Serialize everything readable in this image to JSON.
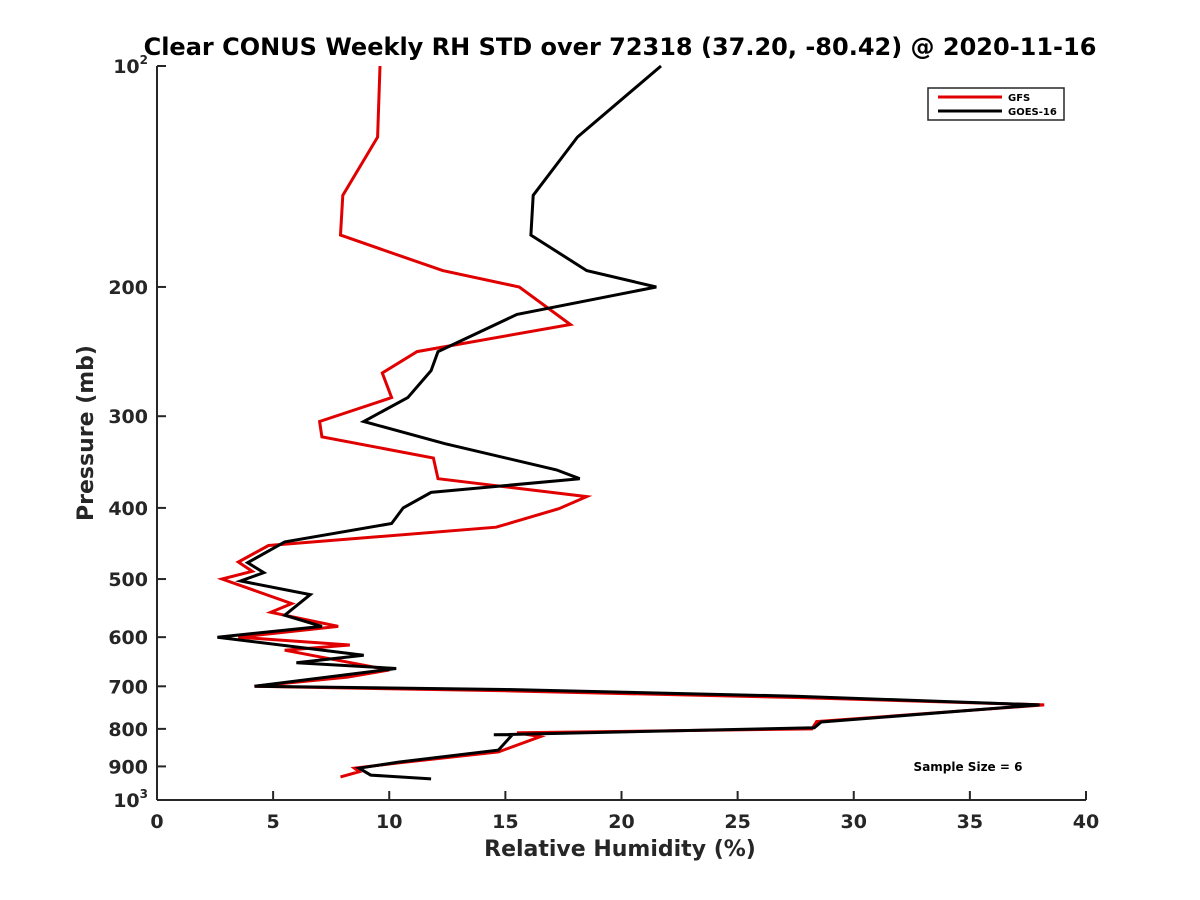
{
  "chart_data": {
    "type": "line",
    "title": "Clear CONUS Weekly RH STD over 72318 (37.20, -80.42) @ 2020-11-16",
    "xlabel": "Relative Humidity (%)",
    "ylabel": "Pressure (mb)",
    "xlim": [
      0,
      40
    ],
    "ylim": [
      100,
      1000
    ],
    "y_scale": "log",
    "y_reversed": true,
    "x_ticks": [
      "0",
      "5",
      "10",
      "15",
      "20",
      "25",
      "30",
      "35",
      "40"
    ],
    "x_tick_values": [
      0,
      5,
      10,
      15,
      20,
      25,
      30,
      35,
      40
    ],
    "y_ticks": [
      {
        "value": 100,
        "base": "10",
        "exp": "2"
      },
      {
        "value": 200,
        "label": "200"
      },
      {
        "value": 300,
        "label": "300"
      },
      {
        "value": 400,
        "label": "400"
      },
      {
        "value": 500,
        "label": "500"
      },
      {
        "value": 600,
        "label": "600"
      },
      {
        "value": 700,
        "label": "700"
      },
      {
        "value": 800,
        "label": "800"
      },
      {
        "value": 900,
        "label": "900"
      },
      {
        "value": 1000,
        "base": "10",
        "exp": "3"
      }
    ],
    "legend_position": "top-right",
    "grid": false,
    "annotation": "Sample Size = 6",
    "series": [
      {
        "name": "GFS",
        "color": "#e00000",
        "points": [
          [
            9.6,
            100
          ],
          [
            9.5,
            125
          ],
          [
            8.0,
            150
          ],
          [
            7.9,
            170
          ],
          [
            12.3,
            190
          ],
          [
            15.6,
            200
          ],
          [
            17.8,
            225
          ],
          [
            11.2,
            245
          ],
          [
            9.7,
            262
          ],
          [
            10.1,
            283
          ],
          [
            7.0,
            305
          ],
          [
            7.1,
            320
          ],
          [
            11.9,
            342
          ],
          [
            12.1,
            365
          ],
          [
            18.5,
            386
          ],
          [
            17.3,
            401
          ],
          [
            14.6,
            425
          ],
          [
            4.8,
            450
          ],
          [
            3.5,
            474
          ],
          [
            4.1,
            488
          ],
          [
            2.8,
            500
          ],
          [
            5.8,
            540
          ],
          [
            4.9,
            555
          ],
          [
            7.8,
            580
          ],
          [
            3.5,
            600
          ],
          [
            8.3,
            615
          ],
          [
            5.5,
            625
          ],
          [
            10.0,
            665
          ],
          [
            8.2,
            680
          ],
          [
            4.2,
            700
          ],
          [
            15.0,
            710
          ],
          [
            27.5,
            725
          ],
          [
            38.2,
            742
          ],
          [
            28.4,
            782
          ],
          [
            28.2,
            800
          ],
          [
            15.5,
            810
          ],
          [
            16.5,
            820
          ],
          [
            14.7,
            860
          ],
          [
            10.4,
            890
          ],
          [
            8.5,
            905
          ],
          [
            8.7,
            915
          ],
          [
            7.9,
            930
          ]
        ]
      },
      {
        "name": "GOES-16",
        "color": "#000000",
        "points": [
          [
            21.7,
            100
          ],
          [
            18.1,
            125
          ],
          [
            16.2,
            150
          ],
          [
            16.1,
            170
          ],
          [
            18.5,
            190
          ],
          [
            21.5,
            200
          ],
          [
            15.5,
            218
          ],
          [
            12.1,
            245
          ],
          [
            11.8,
            260
          ],
          [
            10.8,
            283
          ],
          [
            8.9,
            305
          ],
          [
            12.4,
            327
          ],
          [
            17.2,
            355
          ],
          [
            18.2,
            365
          ],
          [
            11.8,
            381
          ],
          [
            10.6,
            400
          ],
          [
            10.1,
            420
          ],
          [
            5.5,
            445
          ],
          [
            3.9,
            475
          ],
          [
            4.6,
            490
          ],
          [
            3.6,
            503
          ],
          [
            6.6,
            525
          ],
          [
            5.5,
            560
          ],
          [
            7.1,
            580
          ],
          [
            2.6,
            600
          ],
          [
            8.9,
            635
          ],
          [
            6.0,
            650
          ],
          [
            10.3,
            662
          ],
          [
            4.2,
            700
          ],
          [
            15.0,
            707
          ],
          [
            27.5,
            722
          ],
          [
            38.0,
            742
          ],
          [
            28.6,
            783
          ],
          [
            28.3,
            797
          ],
          [
            14.5,
            815
          ],
          [
            15.3,
            815
          ],
          [
            14.7,
            855
          ],
          [
            10.4,
            888
          ],
          [
            8.7,
            905
          ],
          [
            9.2,
            925
          ],
          [
            11.8,
            936
          ]
        ]
      }
    ]
  }
}
